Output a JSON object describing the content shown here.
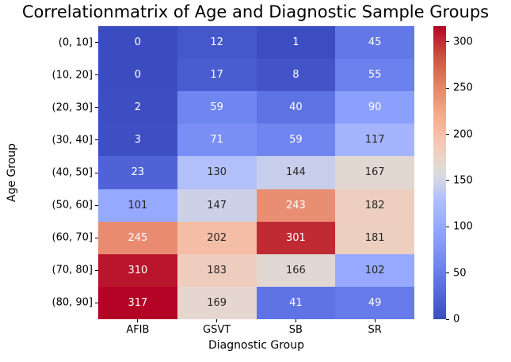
{
  "figure": {
    "title": "Correlationmatrix of Age and Diagnostic Sample Groups"
  },
  "chart_data": {
    "type": "heatmap",
    "title": "Correlationmatrix of Age and Diagnostic Sample Groups",
    "xlabel": "Diagnostic Group",
    "ylabel": "Age Group",
    "x_categories": [
      "AFIB",
      "GSVT",
      "SB",
      "SR"
    ],
    "y_categories": [
      "(0, 10]",
      "(10, 20]",
      "(20, 30]",
      "(30, 40]",
      "(40, 50]",
      "(50, 60]",
      "(60, 70]",
      "(70, 80]",
      "(80, 90]"
    ],
    "values": [
      [
        0,
        12,
        1,
        45
      ],
      [
        0,
        17,
        8,
        55
      ],
      [
        2,
        59,
        40,
        90
      ],
      [
        3,
        71,
        59,
        117
      ],
      [
        23,
        130,
        144,
        167
      ],
      [
        101,
        147,
        243,
        182
      ],
      [
        245,
        202,
        301,
        181
      ],
      [
        310,
        183,
        166,
        102
      ],
      [
        317,
        169,
        41,
        49
      ]
    ],
    "vmin": 0,
    "vmax": 317,
    "colormap": "coolwarm",
    "colorbar_ticks": [
      0,
      50,
      100,
      150,
      200,
      250,
      300
    ],
    "colorbar_position": "right",
    "annotated": true,
    "grid": false,
    "background": "#ffffff",
    "colors": {
      "low": "#3b4cc0",
      "mid": "#dddcdc",
      "high": "#b40426",
      "annot_dark": "#262626",
      "annot_light": "#ffffff",
      "tick": "#000000"
    }
  }
}
